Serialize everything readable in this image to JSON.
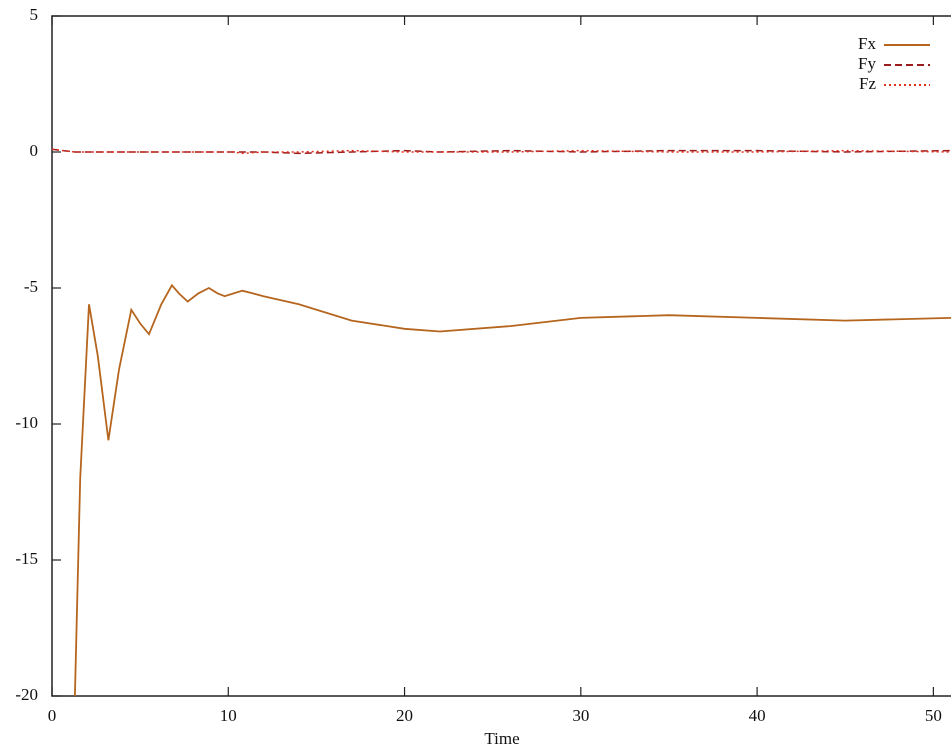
{
  "chart_data": {
    "type": "line",
    "x_label": "Time",
    "x": [
      0,
      1.3,
      1.6,
      2.1,
      2.6,
      3.2,
      3.8,
      4.5,
      5.0,
      5.5,
      6.2,
      6.8,
      7.2,
      7.7,
      8.3,
      8.9,
      9.4,
      9.8,
      10.3,
      10.8,
      12,
      14,
      17,
      20,
      22,
      26,
      30,
      35,
      40,
      45,
      51
    ],
    "series": [
      {
        "name": "Fx",
        "color": "#b5651d",
        "dash": "solid",
        "values": [
          null,
          -20,
          -12,
          -5.6,
          -7.5,
          -10.6,
          -8,
          -5.8,
          -6.3,
          -6.7,
          -5.6,
          -4.9,
          -5.2,
          -5.5,
          -5.2,
          -5.0,
          -5.2,
          -5.3,
          -5.2,
          -5.1,
          -5.3,
          -5.6,
          -6.2,
          -6.5,
          -6.6,
          -6.4,
          -6.1,
          -6.0,
          -6.1,
          -6.2,
          -6.1
        ]
      },
      {
        "name": "Fy",
        "color": "#9b1c1c",
        "dash": "dashed",
        "values": [
          0.1,
          0,
          0,
          0,
          0,
          0,
          0,
          0,
          0,
          0,
          0,
          0,
          0,
          0,
          0,
          0,
          0,
          0,
          0,
          0,
          0,
          -0.05,
          0,
          0.05,
          0,
          0.05,
          0,
          0.05,
          0.05,
          0,
          0.05
        ]
      },
      {
        "name": "Fz",
        "color": "#e0301e",
        "dash": "dotted",
        "values": [
          0.1,
          0,
          0,
          0,
          0,
          0,
          0,
          0,
          0,
          0,
          0,
          0,
          0,
          0,
          0,
          0,
          0,
          0,
          0,
          -0.05,
          0,
          0,
          0.05,
          0,
          0,
          0,
          0.05,
          0,
          0,
          0.05,
          0
        ]
      }
    ],
    "xlim": [
      0,
      51
    ],
    "xticks": [
      0,
      10,
      20,
      30,
      40,
      50
    ],
    "ylim": [
      -20,
      5
    ],
    "yticks": [
      -20,
      -15,
      -10,
      -5,
      0,
      5
    ],
    "legend": "top-right"
  }
}
